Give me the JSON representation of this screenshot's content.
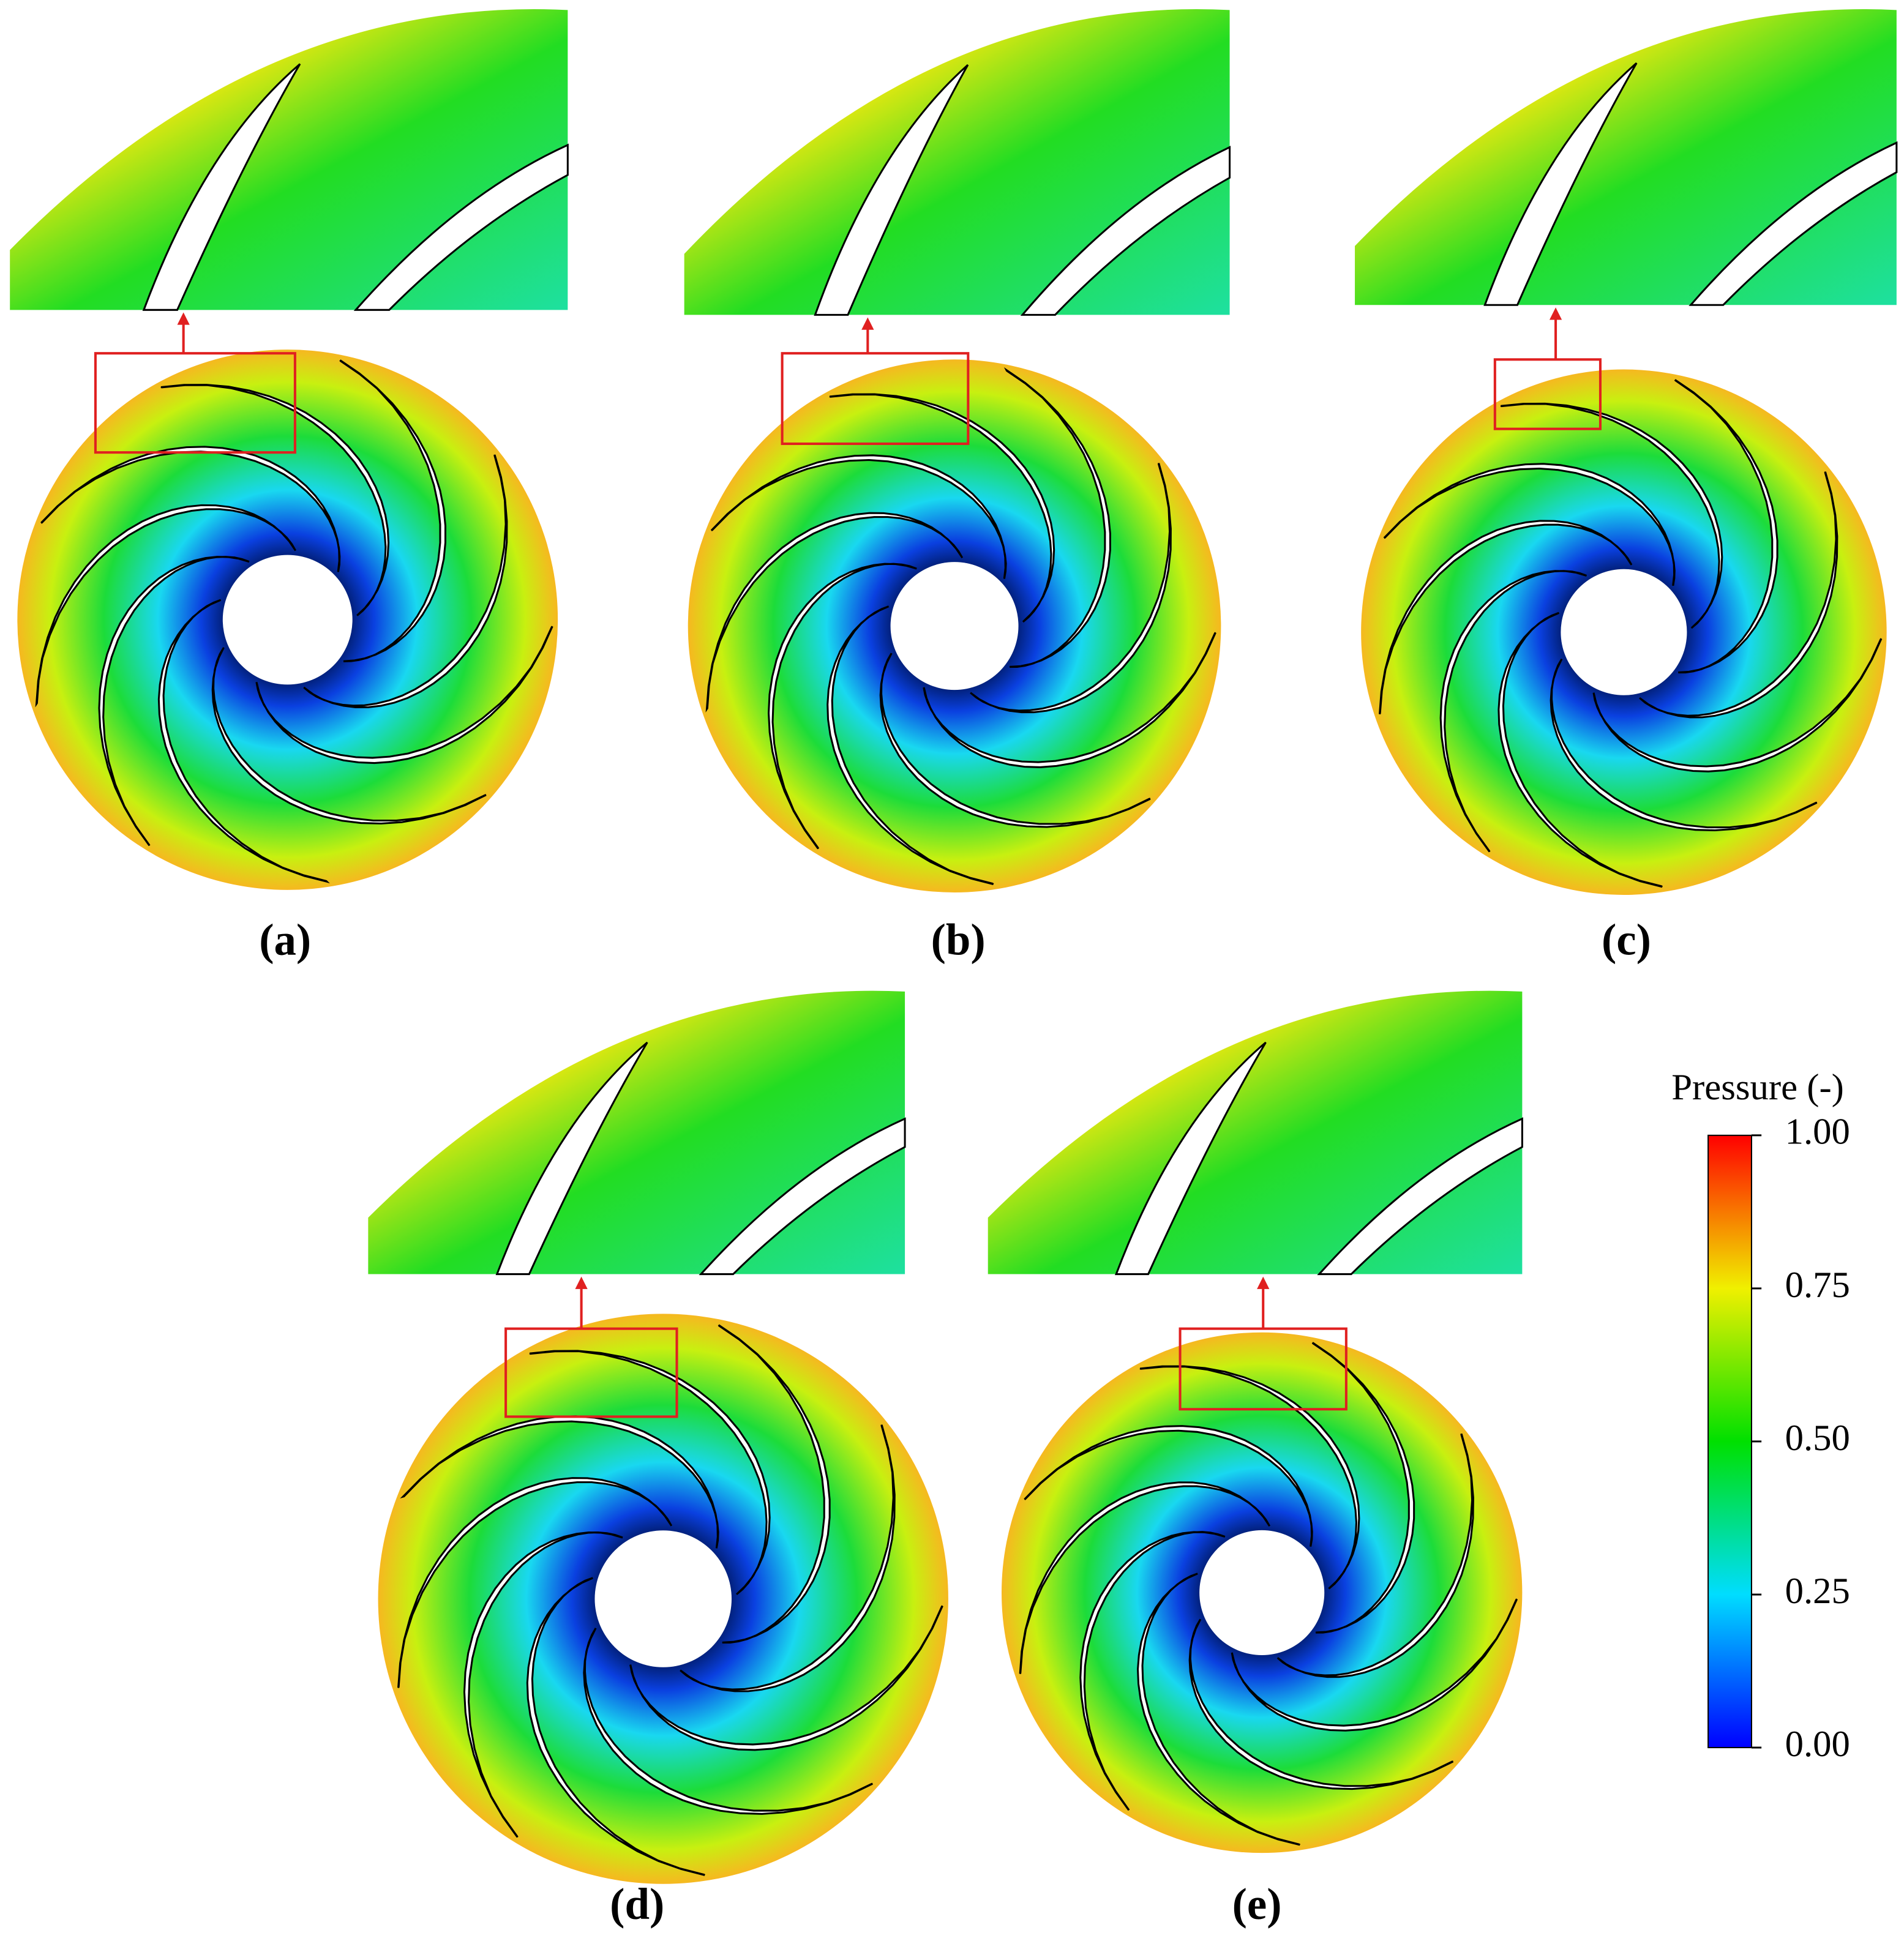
{
  "panels": [
    {
      "label": "(a)"
    },
    {
      "label": "(b)"
    },
    {
      "label": "(c)"
    },
    {
      "label": "(d)"
    },
    {
      "label": "(e)"
    }
  ],
  "colorbar": {
    "title": "Pressure (-)",
    "lim": [
      0,
      1
    ],
    "ticks": [
      {
        "value": 0,
        "label": "0.00"
      },
      {
        "value": 0.25,
        "label": "0.25"
      },
      {
        "value": 0.5,
        "label": "0.50"
      },
      {
        "value": 0.75,
        "label": "0.75"
      },
      {
        "value": 1,
        "label": "1.00"
      }
    ]
  }
}
